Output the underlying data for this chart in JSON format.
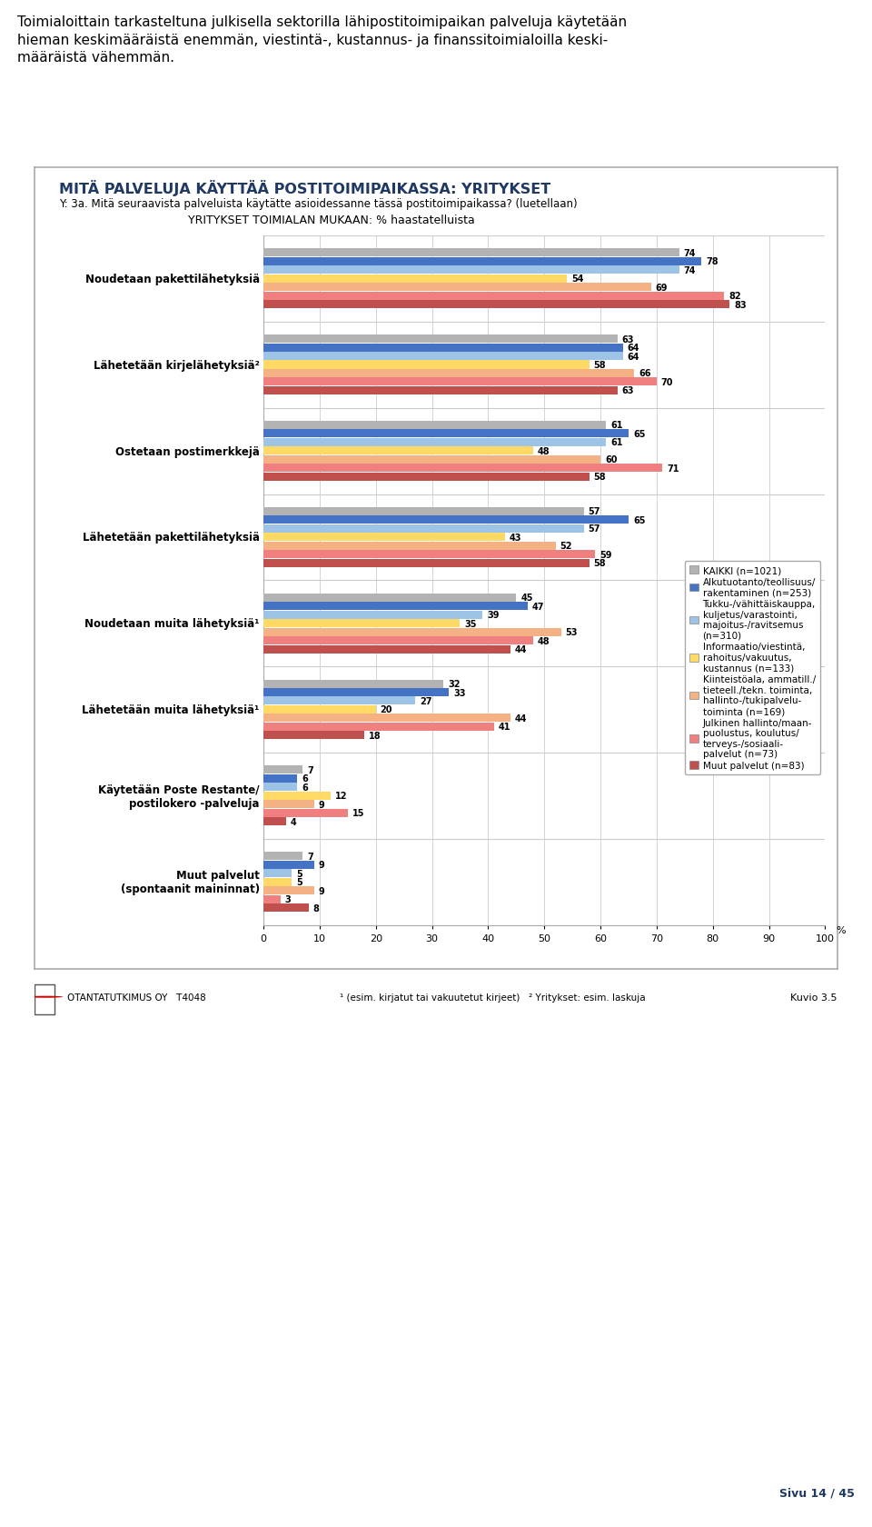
{
  "title_main": "MITÄ PALVELUJA KÄYTTÄÄ POSTITOIMIPAIKASSA: YRITYKSET",
  "subtitle": "Y: 3a. Mitä seuraavista palveluista käytätte asioidessanne tässä postitoimipaikassa? (luetellaan)",
  "subtitle2": "YRITYKSET TOIMIALAN MUKAAN: % haastatelluista",
  "header_text": "Toimialoittain tarkasteltuna julkisella sektorilla lähipostitoimipaikan palveluja käytetään hieman keskimääräistä enemmän, viestintä-, kustannus- ja finanssitoimialoilla keski-\nmääräistä vähemmän.",
  "footer_text": "¹ (esim. kirjatut tai vakuutetut kirjeet)   ² Yritykset: esim. laskuja",
  "footer_right": "Kuvio 3.5",
  "footer_company": "OTANTATUTKIMUS OY   T4048",
  "categories": [
    "Noudetaan pakettilähetyksiä",
    "Lähetetään kirjelähetyksiä²",
    "Ostetaan postimerkkejä",
    "Lähetetään pakettilähetyksiä",
    "Noudetaan muita lähetyksiä¹",
    "Lähetetään muita lähetyksiä¹",
    "Käytetään Poste Restante/\npostilokero -palveluja",
    "Muut palvelut\n(spontaanit maininnat)"
  ],
  "series": [
    {
      "label": "KAIKKI (n=1021)",
      "color": "#b3b3b3",
      "values": [
        74,
        63,
        61,
        57,
        45,
        32,
        7,
        7
      ]
    },
    {
      "label": "Alkutuotanto/teollisuus/\nrakentaminen (n=253)",
      "color": "#4472c4",
      "values": [
        78,
        64,
        65,
        65,
        47,
        33,
        6,
        9
      ]
    },
    {
      "label": "Tukku-/vähittäiskauppa,\nkuljetus/varastointi,\nmajoitus-/ravitsemus\n(n=310)",
      "color": "#9dc3e6",
      "values": [
        74,
        64,
        61,
        57,
        39,
        27,
        6,
        5
      ]
    },
    {
      "label": "Informaatio/viestintä,\nrahoitus/vakuutus,\nkustannus (n=133)",
      "color": "#ffd966",
      "values": [
        54,
        58,
        48,
        43,
        35,
        20,
        12,
        5
      ]
    },
    {
      "label": "Kiinteistöala, ammatill./\ntieteell./tekn. toiminta,\nhallinto-/tukipalvelu-\ntoiminta (n=169)",
      "color": "#f4b183",
      "values": [
        69,
        66,
        60,
        52,
        53,
        44,
        9,
        9
      ]
    },
    {
      "label": "Julkinen hallinto/maan-\npuolustus, koulutus/\nterveys-/sosiaali-\npalvelut (n=73)",
      "color": "#f08080",
      "values": [
        82,
        70,
        71,
        59,
        48,
        41,
        15,
        3
      ]
    },
    {
      "label": "Muut palvelut (n=83)",
      "color": "#c0504d",
      "values": [
        83,
        63,
        58,
        58,
        44,
        18,
        4,
        8
      ]
    }
  ],
  "xlim": [
    0,
    100
  ],
  "xticks": [
    0,
    10,
    20,
    30,
    40,
    50,
    60,
    70,
    80,
    90,
    100
  ],
  "xlabel": "%",
  "background_color": "#ffffff",
  "chart_border_color": "#aaaaaa",
  "page_num": "Sivu 14 / 45"
}
